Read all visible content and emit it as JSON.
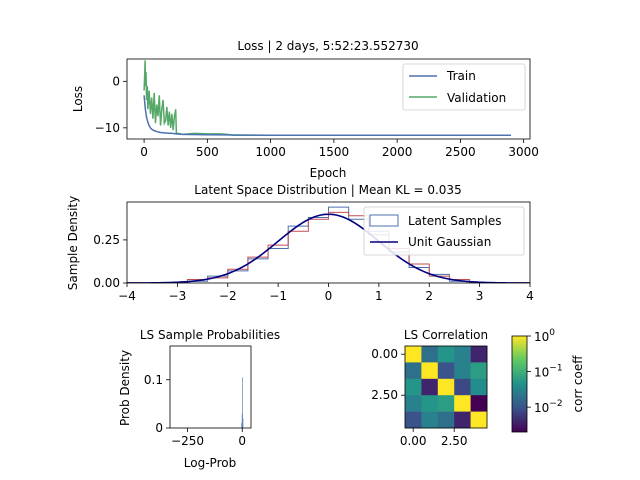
{
  "chart_data": [
    {
      "type": "line",
      "title": "Loss | 2 days, 5:52:23.552730",
      "xlabel": "Epoch",
      "ylabel": "Loss",
      "xlim": [
        -135,
        3050
      ],
      "ylim": [
        -12.4,
        4.8
      ],
      "xticks": [
        0,
        500,
        1000,
        1500,
        2000,
        2500,
        3000
      ],
      "yticks": [
        0,
        -10
      ],
      "legend": "top-right",
      "series": [
        {
          "name": "Train",
          "color": "#4c72b0",
          "x": [
            0,
            10,
            20,
            30,
            40,
            50,
            60,
            80,
            100,
            130,
            170,
            220,
            260,
            300,
            500,
            1000,
            1500,
            2000,
            2500,
            2900
          ],
          "y": [
            -3.0,
            -6.0,
            -7.8,
            -8.8,
            -9.5,
            -10.0,
            -10.3,
            -10.6,
            -10.8,
            -11.0,
            -11.1,
            -11.2,
            -11.3,
            -11.4,
            -11.5,
            -11.6,
            -11.6,
            -11.6,
            -11.6,
            -11.6
          ]
        },
        {
          "name": "Validation",
          "color": "#55a868",
          "x": [
            0,
            5,
            8,
            12,
            15,
            20,
            25,
            30,
            40,
            50,
            60,
            70,
            80,
            90,
            100,
            110,
            120,
            130,
            140,
            150,
            160,
            170,
            180,
            190,
            200,
            210,
            220,
            230,
            240,
            250,
            255,
            260,
            270,
            300,
            400,
            500,
            600,
            660,
            700,
            1000,
            1500,
            2000,
            2500,
            2900
          ],
          "y": [
            -2.0,
            1.5,
            4.5,
            -1.0,
            2.0,
            -4.0,
            -1.0,
            -6.0,
            -2.0,
            -7.0,
            -3.5,
            -8.0,
            -2.5,
            -9.0,
            -5.0,
            -7.5,
            -3.0,
            -9.5,
            -6.0,
            -4.0,
            -9.0,
            -8.5,
            -5.5,
            -9.5,
            -6.5,
            -10.0,
            -7.0,
            -10.5,
            -7.5,
            -6.0,
            -11.0,
            -11.3,
            -11.2,
            -11.4,
            -11.2,
            -11.3,
            -11.3,
            -11.4,
            -11.6,
            -11.6,
            -11.6,
            -11.6,
            -11.6,
            -11.6
          ]
        }
      ]
    },
    {
      "type": "area",
      "title": "Latent Space Distribution | Mean KL = 0.035",
      "xlabel": "",
      "ylabel": "Sample Density",
      "xlim": [
        -4,
        4
      ],
      "ylim": [
        0,
        0.47
      ],
      "xticks": [
        -4,
        -3,
        -2,
        -1,
        0,
        1,
        2,
        3,
        4
      ],
      "yticks": [
        0.0,
        0.25
      ],
      "yticklabels": [
        "0.00",
        "0.25"
      ],
      "legend": "top-right",
      "series": [
        {
          "name": "Latent Samples",
          "color": "#4c72b0",
          "style": "step",
          "bin_edges": [
            -2.8,
            -2.4,
            -2.0,
            -1.6,
            -1.2,
            -0.8,
            -0.4,
            0.0,
            0.4,
            0.8,
            1.2,
            1.6,
            2.0,
            2.4,
            2.8
          ],
          "values": [
            0.01,
            0.04,
            0.07,
            0.14,
            0.2,
            0.33,
            0.38,
            0.44,
            0.37,
            0.3,
            0.18,
            0.09,
            0.05,
            0.01
          ]
        },
        {
          "name": "",
          "color": "#c44e52",
          "style": "step",
          "bin_edges": [
            -2.8,
            -2.4,
            -2.0,
            -1.6,
            -1.2,
            -0.8,
            -0.4,
            0.0,
            0.4,
            0.8,
            1.2,
            1.6,
            2.0,
            2.4,
            2.8
          ],
          "values": [
            0.02,
            0.03,
            0.08,
            0.15,
            0.22,
            0.3,
            0.37,
            0.41,
            0.39,
            0.28,
            0.2,
            0.11,
            0.04,
            0.02
          ]
        },
        {
          "name": "Unit Gaussian",
          "color": "#000080",
          "style": "pdf",
          "mean": 0,
          "std": 1
        }
      ]
    },
    {
      "type": "bar",
      "title": "LS Sample Probabilities",
      "xlabel": "Log-Prob",
      "ylabel": "Prob Density",
      "xlim": [
        -330,
        40
      ],
      "ylim": [
        0,
        0.17
      ],
      "xticks": [
        -250,
        0
      ],
      "yticks": [
        0.0,
        0.1
      ],
      "series": [
        {
          "name": "",
          "color": "#4c72b0",
          "bin_edges": [
            -4,
            -2,
            0,
            2,
            4
          ],
          "values": [
            0.01,
            0.03,
            0.105,
            0.02
          ]
        }
      ]
    },
    {
      "type": "heatmap",
      "title": "LS Correlation",
      "xticks": [
        0.0,
        2.5
      ],
      "yticks": [
        0.0,
        2.5
      ],
      "colorbar_label": "corr coeff",
      "colorbar_ticks": [
        {
          "base": "10",
          "exp": "0",
          "value": 1
        },
        {
          "base": "10",
          "exp": "−1",
          "value": 0.1
        },
        {
          "base": "10",
          "exp": "−2",
          "value": 0.01
        }
      ],
      "scale": "log",
      "vmin": 0.002,
      "vmax": 1,
      "matrix": [
        [
          1.0,
          0.02,
          0.05,
          0.03,
          0.004
        ],
        [
          0.02,
          1.0,
          0.01,
          0.03,
          0.06
        ],
        [
          0.05,
          0.004,
          1.0,
          0.008,
          0.04
        ],
        [
          0.03,
          0.05,
          0.06,
          1.0,
          0.002
        ],
        [
          0.01,
          0.03,
          0.02,
          0.004,
          1.0
        ]
      ]
    }
  ]
}
